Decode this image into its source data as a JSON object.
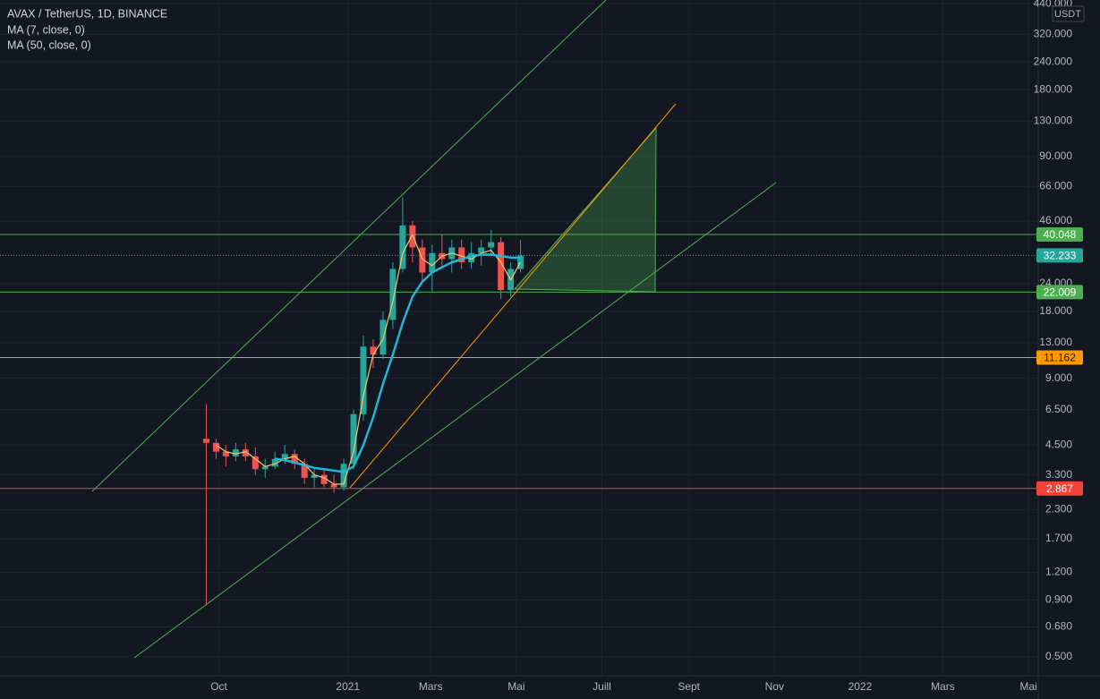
{
  "chart_data": {
    "type": "candlestick",
    "title": "AVAX / TetherUS, 1D, BINANCE",
    "unit": "USDT",
    "log_scale": true,
    "grid": true,
    "xlim": [
      -156,
      584
    ],
    "xticks": [
      {
        "value": 0,
        "label": "Oct"
      },
      {
        "value": 92,
        "label": "2021"
      },
      {
        "value": 151,
        "label": "Mars"
      },
      {
        "value": 212,
        "label": "Mai"
      },
      {
        "value": 273,
        "label": "Juill"
      },
      {
        "value": 335,
        "label": "Sept"
      },
      {
        "value": 396,
        "label": "Nov"
      },
      {
        "value": 457,
        "label": "2022"
      },
      {
        "value": 516,
        "label": "Mars"
      },
      {
        "value": 577,
        "label": "Mai"
      }
    ],
    "ylim": [
      0.41,
      457
    ],
    "yticks": [
      {
        "value": 440,
        "label": "440.000"
      },
      {
        "value": 320,
        "label": "320.000"
      },
      {
        "value": 240,
        "label": "240.000"
      },
      {
        "value": 180,
        "label": "180.000"
      },
      {
        "value": 130,
        "label": "130.000"
      },
      {
        "value": 90,
        "label": "90.000"
      },
      {
        "value": 66,
        "label": "66.000"
      },
      {
        "value": 46,
        "label": "46.000"
      },
      {
        "value": 24,
        "label": "24.000"
      },
      {
        "value": 18,
        "label": "18.000"
      },
      {
        "value": 13,
        "label": "13.000"
      },
      {
        "value": 9,
        "label": "9.000"
      },
      {
        "value": 6.5,
        "label": "6.500"
      },
      {
        "value": 4.5,
        "label": "4.500"
      },
      {
        "value": 3.3,
        "label": "3.300"
      },
      {
        "value": 2.3,
        "label": "2.300"
      },
      {
        "value": 1.7,
        "label": "1.700"
      },
      {
        "value": 1.2,
        "label": "1.200"
      },
      {
        "value": 0.9,
        "label": "0.900"
      },
      {
        "value": 0.68,
        "label": "0.680"
      },
      {
        "value": 0.5,
        "label": "0.500"
      }
    ],
    "candles": {
      "up_color": "#26a69a",
      "down_color": "#ef5350",
      "x": [
        -9,
        -2,
        5,
        12,
        19,
        26,
        33,
        40,
        47,
        54,
        61,
        68,
        75,
        82,
        89,
        96,
        103,
        110,
        117,
        124,
        131,
        138,
        145,
        152,
        159,
        166,
        173,
        180,
        187,
        194,
        201,
        208,
        215
      ],
      "open": [
        4.8,
        4.6,
        4.2,
        4.0,
        4.3,
        4.0,
        3.5,
        3.6,
        3.9,
        4.1,
        3.7,
        3.2,
        3.3,
        3.0,
        2.9,
        3.7,
        6.2,
        12.5,
        11.5,
        16.5,
        28,
        44,
        35,
        27,
        33,
        31,
        35,
        30,
        33,
        35,
        37,
        22.5,
        28
      ],
      "high": [
        6.9,
        4.8,
        4.5,
        4.6,
        4.6,
        4.4,
        3.9,
        4.2,
        4.5,
        4.3,
        3.9,
        3.5,
        3.5,
        3.3,
        3.9,
        6.5,
        14,
        13.5,
        18,
        30,
        59,
        46,
        38,
        36,
        40,
        38,
        38,
        37,
        38,
        42,
        39,
        30,
        38
      ],
      "low": [
        0.85,
        3.9,
        3.6,
        3.8,
        3.8,
        3.3,
        3.2,
        3.5,
        3.7,
        3.5,
        3.0,
        2.9,
        2.9,
        2.75,
        2.8,
        3.5,
        5.8,
        10,
        11,
        15,
        27,
        30,
        24,
        22,
        29,
        27,
        28,
        28,
        29,
        32,
        20.5,
        21,
        27
      ],
      "close": [
        4.6,
        4.2,
        4.0,
        4.3,
        4.0,
        3.5,
        3.6,
        3.9,
        4.1,
        3.7,
        3.2,
        3.3,
        3.0,
        2.9,
        3.7,
        6.2,
        12.5,
        11.5,
        16.5,
        28,
        44,
        35,
        27,
        33,
        31,
        35,
        30,
        33,
        35,
        37,
        22.5,
        28,
        32.2
      ]
    },
    "series": [
      {
        "name": "MA (7, close, 0)",
        "color": "#f7c56b",
        "x": [
          -2,
          5,
          12,
          19,
          26,
          33,
          40,
          47,
          54,
          61,
          68,
          75,
          82,
          89,
          96,
          103,
          110,
          117,
          124,
          131,
          138,
          145,
          152,
          159,
          166,
          173,
          180,
          187,
          194,
          201,
          208,
          215
        ],
        "values": [
          4.5,
          4.2,
          4.1,
          4.2,
          3.9,
          3.6,
          3.7,
          3.9,
          4.0,
          3.7,
          3.3,
          3.2,
          3.0,
          3.0,
          4.2,
          7.5,
          11.5,
          13.5,
          20,
          33,
          40,
          31,
          29,
          32,
          33,
          32,
          31,
          33,
          34,
          30,
          25,
          30
        ]
      },
      {
        "name": "MA (50, close, 0)",
        "color": "#22b5d6",
        "x": [
          40,
          47,
          54,
          61,
          68,
          75,
          82,
          89,
          96,
          103,
          110,
          117,
          124,
          131,
          138,
          145,
          152,
          159,
          166,
          173,
          180,
          187,
          194,
          201,
          208,
          215
        ],
        "values": [
          3.9,
          3.85,
          3.75,
          3.65,
          3.55,
          3.5,
          3.45,
          3.4,
          3.6,
          4.5,
          6.0,
          8.5,
          11.5,
          16.0,
          21.0,
          24.5,
          27.0,
          28.5,
          30.0,
          31.0,
          32.0,
          32.5,
          32.5,
          32.0,
          31.5,
          31.5
        ]
      }
    ],
    "levels": [
      {
        "value": 40.048,
        "color": "#4caf50"
      },
      {
        "value": 32.233,
        "color": "#26a69a",
        "dotted": true
      },
      {
        "value": 22.009,
        "color": "#4caf50"
      },
      {
        "value": 11.162,
        "color": "#ff9800"
      },
      {
        "value": 2.867,
        "color": "#f44336"
      }
    ]
  }
}
